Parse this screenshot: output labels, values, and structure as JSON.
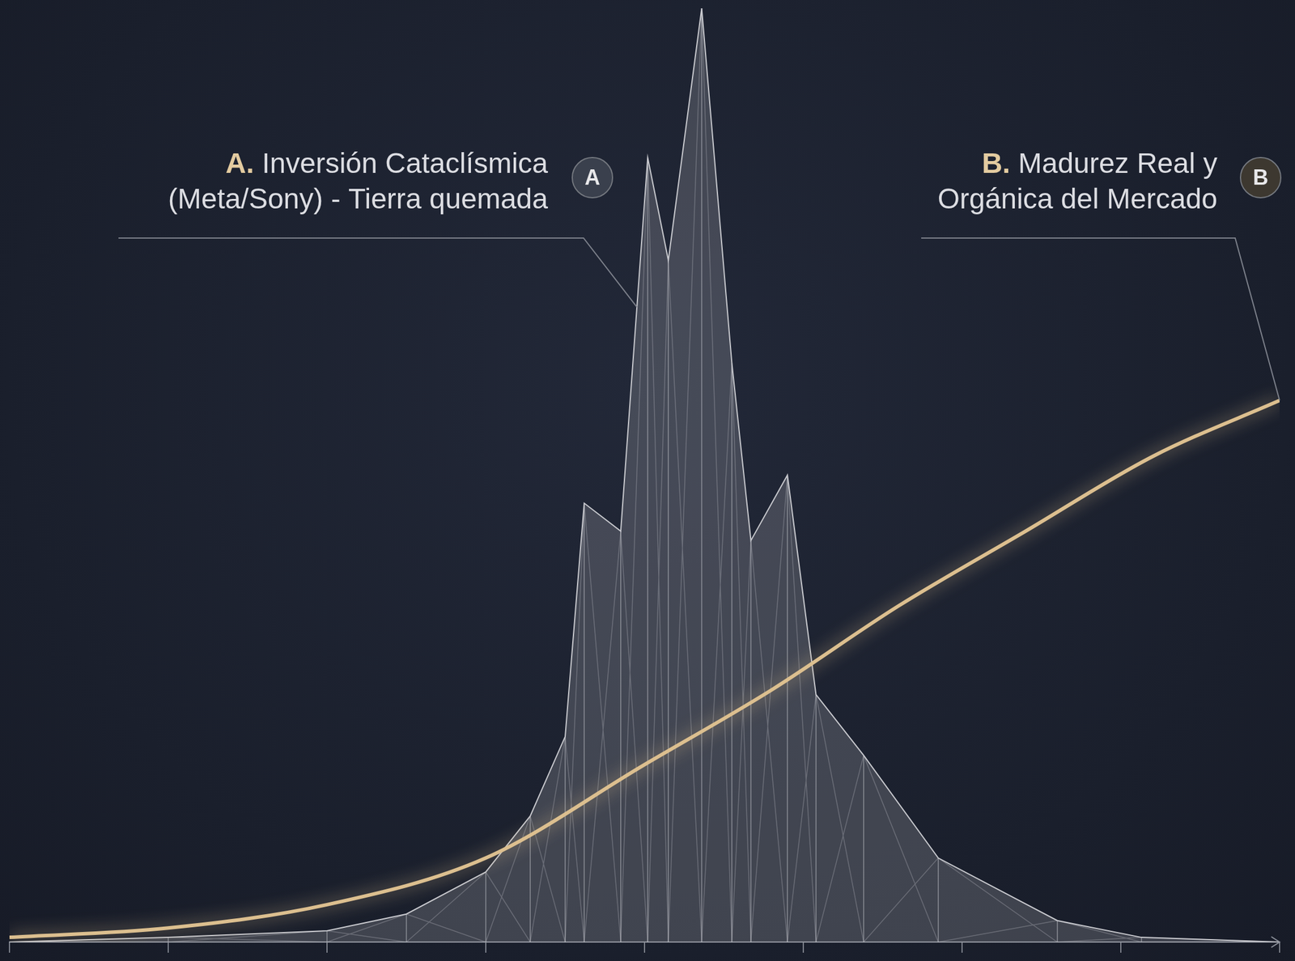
{
  "chart_data": {
    "type": "line",
    "xlim": [
      0,
      8
    ],
    "xticks": [
      0,
      1,
      2,
      3,
      4,
      5,
      6,
      7,
      8
    ],
    "ylim": [
      0,
      100
    ],
    "tick_labels": false,
    "grid": false,
    "series": [
      {
        "name": "A",
        "type": "area",
        "color": "#c9cacf",
        "line_style": "solid",
        "x": [
          0,
          1,
          2,
          2.5,
          3,
          3.28,
          3.5,
          3.62,
          3.85,
          4.02,
          4.15,
          4.36,
          4.55,
          4.67,
          4.9,
          5.08,
          5.38,
          5.85,
          6.6,
          7.13,
          8
        ],
        "values": [
          0,
          0.5,
          1.2,
          3,
          7.5,
          13.5,
          22,
          47,
          44,
          84,
          73,
          100,
          62,
          43,
          50,
          26.5,
          20,
          9,
          2.3,
          0.5,
          0
        ]
      },
      {
        "name": "B",
        "type": "line",
        "color": "#dcbf8f",
        "line_style": "solid",
        "x": [
          0,
          1,
          2,
          3,
          4,
          4.8,
          5.6,
          6.4,
          7.2,
          8
        ],
        "values": [
          0.5,
          1.5,
          4,
          9,
          19,
          27,
          36,
          44,
          52,
          58
        ]
      }
    ],
    "annotations": [
      {
        "series": "A",
        "prefix": "A.",
        "lines": [
          "Inversión Cataclísmica",
          "(Meta/Sony) - Tierra quemada"
        ]
      },
      {
        "series": "B",
        "prefix": "B.",
        "lines": [
          "Madurez Real y",
          "Orgánica del Mercado"
        ]
      }
    ]
  }
}
